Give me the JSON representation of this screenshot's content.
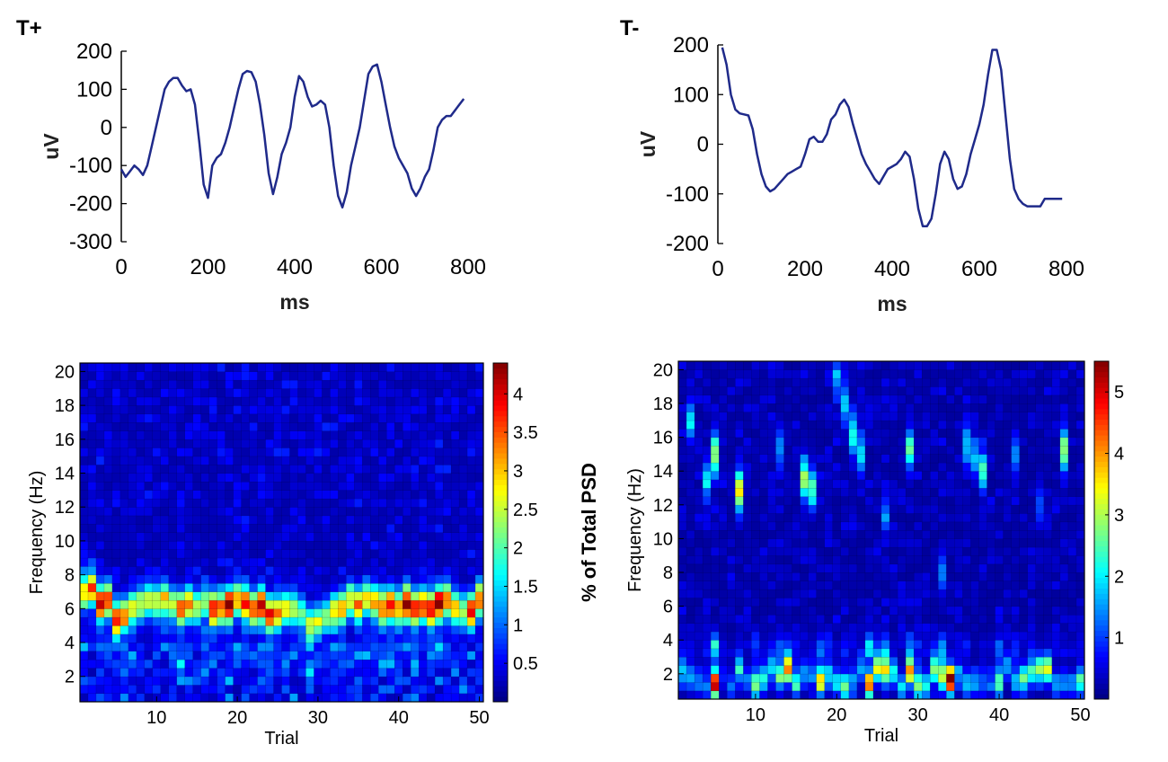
{
  "chart_data": [
    {
      "type": "line",
      "title": "T+",
      "xlabel": "ms",
      "ylabel": "uV",
      "xlim": [
        0,
        800
      ],
      "ylim": [
        -300,
        200
      ],
      "xticks": [
        0,
        200,
        400,
        600,
        800
      ],
      "yticks": [
        200,
        100,
        0,
        -100,
        -200,
        -300
      ],
      "color": "#1f2a8a",
      "x": [
        0,
        10,
        20,
        30,
        40,
        50,
        60,
        70,
        80,
        90,
        100,
        110,
        120,
        130,
        140,
        150,
        160,
        170,
        180,
        190,
        200,
        210,
        220,
        230,
        240,
        250,
        260,
        270,
        280,
        290,
        300,
        310,
        320,
        330,
        340,
        350,
        360,
        370,
        380,
        390,
        400,
        410,
        420,
        430,
        440,
        450,
        460,
        470,
        480,
        490,
        500,
        510,
        520,
        530,
        540,
        550,
        560,
        570,
        580,
        590,
        600,
        610,
        620,
        630,
        640,
        650,
        660,
        670,
        680,
        690,
        700,
        710,
        720,
        730,
        740,
        750,
        760,
        770,
        780,
        790
      ],
      "values": [
        -110,
        -130,
        -115,
        -100,
        -110,
        -125,
        -100,
        -50,
        0,
        50,
        100,
        120,
        130,
        130,
        110,
        95,
        100,
        60,
        -40,
        -150,
        -185,
        -100,
        -80,
        -70,
        -40,
        0,
        50,
        100,
        140,
        148,
        145,
        120,
        60,
        -20,
        -120,
        -175,
        -130,
        -70,
        -40,
        0,
        80,
        135,
        120,
        80,
        55,
        60,
        70,
        60,
        0,
        -100,
        -180,
        -210,
        -170,
        -100,
        -50,
        0,
        70,
        140,
        160,
        165,
        120,
        60,
        0,
        -50,
        -80,
        -100,
        -120,
        -160,
        -180,
        -160,
        -130,
        -110,
        -60,
        0,
        20,
        30,
        30,
        45,
        60,
        75
      ]
    },
    {
      "type": "line",
      "title": "T-",
      "xlabel": "ms",
      "ylabel": "uV",
      "xlim": [
        0,
        800
      ],
      "ylim": [
        -200,
        200
      ],
      "xticks": [
        0,
        200,
        400,
        600,
        800
      ],
      "yticks": [
        200,
        100,
        0,
        -100,
        -200
      ],
      "color": "#1f2a8a",
      "x": [
        10,
        20,
        30,
        40,
        50,
        60,
        70,
        80,
        90,
        100,
        110,
        120,
        130,
        140,
        150,
        160,
        170,
        180,
        190,
        200,
        210,
        220,
        230,
        240,
        250,
        260,
        270,
        280,
        290,
        300,
        310,
        320,
        330,
        340,
        350,
        360,
        370,
        380,
        390,
        400,
        410,
        420,
        430,
        440,
        450,
        460,
        470,
        480,
        490,
        500,
        510,
        520,
        530,
        540,
        550,
        560,
        570,
        580,
        590,
        600,
        610,
        620,
        630,
        640,
        650,
        660,
        670,
        680,
        690,
        700,
        710,
        720,
        730,
        740,
        750,
        760,
        770,
        780,
        790
      ],
      "values": [
        195,
        160,
        100,
        70,
        62,
        60,
        58,
        30,
        -20,
        -60,
        -85,
        -95,
        -90,
        -80,
        -70,
        -60,
        -55,
        -50,
        -45,
        -20,
        10,
        15,
        5,
        5,
        20,
        50,
        60,
        80,
        90,
        75,
        40,
        10,
        -20,
        -40,
        -55,
        -70,
        -80,
        -65,
        -50,
        -45,
        -40,
        -30,
        -15,
        -25,
        -70,
        -130,
        -165,
        -165,
        -150,
        -100,
        -40,
        -15,
        -30,
        -70,
        -90,
        -85,
        -60,
        -20,
        10,
        40,
        80,
        140,
        190,
        190,
        150,
        60,
        -30,
        -90,
        -110,
        -120,
        -125,
        -125,
        -125,
        -125,
        -110,
        -110,
        -110,
        -110,
        -110
      ]
    },
    {
      "type": "heatmap",
      "xlabel": "Trial",
      "ylabel": "Frequency (Hz)",
      "colorbar_label": "% of Total PSD",
      "xlim": [
        1,
        50
      ],
      "ylim": [
        0.5,
        20.5
      ],
      "xticks": [
        10,
        20,
        30,
        40,
        50
      ],
      "yticks": [
        2,
        4,
        6,
        8,
        10,
        12,
        14,
        16,
        18,
        20
      ],
      "colorbar_range": [
        0,
        4.4
      ],
      "colorbar_ticks": [
        0.5,
        1,
        1.5,
        2,
        2.5,
        3,
        3.5,
        4
      ],
      "colorbar_tick_labels": [
        "0.5",
        "1",
        "1.5",
        "2",
        "2.5",
        "3",
        "3.5",
        "4"
      ],
      "trials": 50,
      "freq_bins": 40,
      "band_center_hz": [
        7.0,
        7.2,
        6.3,
        6.5,
        5.3,
        5.6,
        6.0,
        6.3,
        6.5,
        6.4,
        6.6,
        6.2,
        6.0,
        6.3,
        6.1,
        6.4,
        6.0,
        6.0,
        6.2,
        6.5,
        6.3,
        6.0,
        6.2,
        5.6,
        5.8,
        6.0,
        6.0,
        5.8,
        5.0,
        5.2,
        5.6,
        5.8,
        6.0,
        6.5,
        6.2,
        6.6,
        6.4,
        6.0,
        6.2,
        6.0,
        6.3,
        6.0,
        6.2,
        6.0,
        6.3,
        6.5,
        6.0,
        5.8,
        5.8,
        6.5
      ],
      "band_peak_pct": [
        2.6,
        3.2,
        3.9,
        3.3,
        3.5,
        3.0,
        2.5,
        2.2,
        2.4,
        2.3,
        2.6,
        2.2,
        3.3,
        3.0,
        2.2,
        2.0,
        3.6,
        3.0,
        4.2,
        2.6,
        3.5,
        3.4,
        3.9,
        3.6,
        2.9,
        2.6,
        2.2,
        1.8,
        2.3,
        2.2,
        1.9,
        2.6,
        2.9,
        2.5,
        3.1,
        2.6,
        2.6,
        3.2,
        3.6,
        2.9,
        3.9,
        3.6,
        3.4,
        3.7,
        4.0,
        3.2,
        2.7,
        2.2,
        3.7,
        3.1
      ]
    },
    {
      "type": "heatmap",
      "xlabel": "Trial",
      "ylabel": "Frequency (Hz)",
      "colorbar_label": "% of Total PSD",
      "xlim": [
        1,
        50
      ],
      "ylim": [
        0.5,
        20.5
      ],
      "xticks": [
        10,
        20,
        30,
        40,
        50
      ],
      "yticks": [
        2,
        4,
        6,
        8,
        10,
        12,
        14,
        16,
        18,
        20
      ],
      "colorbar_range": [
        0,
        5.5
      ],
      "colorbar_ticks": [
        1,
        2,
        3,
        4,
        5
      ],
      "colorbar_tick_labels": [
        "1",
        "2",
        "3",
        "4",
        "5"
      ],
      "trials": 50,
      "freq_bins": 40,
      "low_peak_pct": [
        1.6,
        1.3,
        1.1,
        1.0,
        5.0,
        0.6,
        1.0,
        1.8,
        0.8,
        2.6,
        2.0,
        1.5,
        2.3,
        3.6,
        2.0,
        1.3,
        1.0,
        3.5,
        1.5,
        1.6,
        2.5,
        1.3,
        1.1,
        4.0,
        2.8,
        3.3,
        2.0,
        1.6,
        3.8,
        2.6,
        1.9,
        2.6,
        3.0,
        5.4,
        1.2,
        1.6,
        1.2,
        1.0,
        0.8,
        2.4,
        1.3,
        1.5,
        2.4,
        2.0,
        2.8,
        3.0,
        1.3,
        1.2,
        1.0,
        2.2
      ],
      "high_spots": [
        {
          "trial": 2,
          "hz": 17,
          "pct": 1.6
        },
        {
          "trial": 5,
          "hz": 15,
          "pct": 2.7
        },
        {
          "trial": 4,
          "hz": 13.5,
          "pct": 1.6
        },
        {
          "trial": 8,
          "hz": 12.8,
          "pct": 3.2
        },
        {
          "trial": 13,
          "hz": 15.5,
          "pct": 1.2
        },
        {
          "trial": 16,
          "hz": 13.5,
          "pct": 2.8
        },
        {
          "trial": 17,
          "hz": 13.0,
          "pct": 2.2
        },
        {
          "trial": 20,
          "hz": 19.5,
          "pct": 1.3
        },
        {
          "trial": 21,
          "hz": 18.0,
          "pct": 1.6
        },
        {
          "trial": 22,
          "hz": 16.2,
          "pct": 2.0
        },
        {
          "trial": 23,
          "hz": 15.0,
          "pct": 1.7
        },
        {
          "trial": 29,
          "hz": 15.3,
          "pct": 2.2
        },
        {
          "trial": 33,
          "hz": 8.0,
          "pct": 1.2
        },
        {
          "trial": 36,
          "hz": 15.5,
          "pct": 1.5
        },
        {
          "trial": 37,
          "hz": 14.8,
          "pct": 1.3
        },
        {
          "trial": 38,
          "hz": 14.0,
          "pct": 2.0
        },
        {
          "trial": 42,
          "hz": 15.0,
          "pct": 1.2
        },
        {
          "trial": 48,
          "hz": 15.3,
          "pct": 2.6
        },
        {
          "trial": 26,
          "hz": 11.5,
          "pct": 1.0
        },
        {
          "trial": 45,
          "hz": 12.0,
          "pct": 0.9
        }
      ]
    }
  ]
}
